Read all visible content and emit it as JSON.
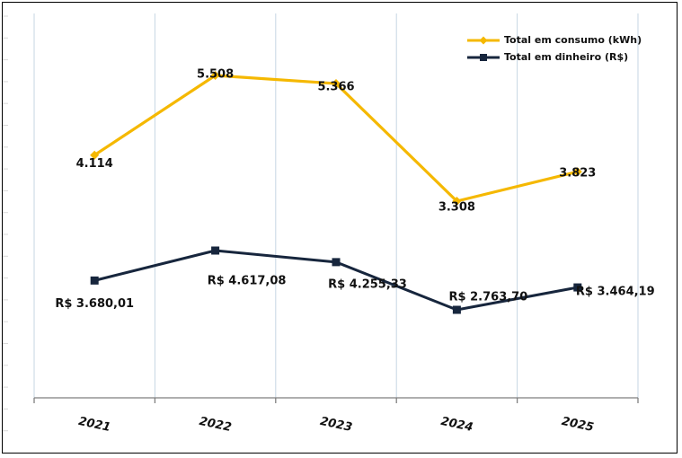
{
  "chart_data": {
    "type": "line",
    "title": "",
    "xlabel": "",
    "ylabel": "",
    "categories": [
      "2021",
      "2022",
      "2023",
      "2024",
      "2025"
    ],
    "series": [
      {
        "name": "Total em consumo (kWh)",
        "color": "#f5b800",
        "marker": "diamond",
        "values": [
          4114,
          5508,
          5366,
          3308,
          3823
        ],
        "labels": [
          "4.114",
          "5.508",
          "5.366",
          "3.308",
          "3.823"
        ]
      },
      {
        "name": "Total em dinheiro (R$)",
        "color": "#17263d",
        "marker": "square",
        "values": [
          3680.01,
          4617.08,
          4255.33,
          2763.7,
          3464.19
        ],
        "labels": [
          "R$ 3.680,01",
          "R$ 4.617,08",
          "R$ 4.255,33",
          "R$ 2.763,70",
          "R$ 3.464,19"
        ]
      }
    ],
    "grid": true,
    "legend_position": "top-right"
  }
}
